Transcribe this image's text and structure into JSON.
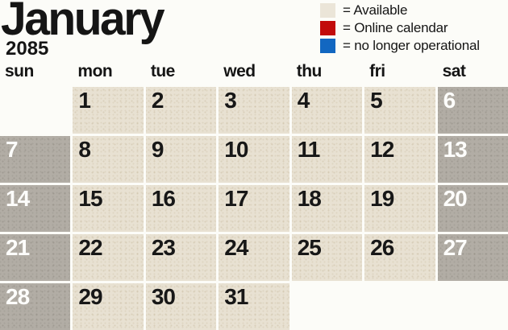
{
  "header": {
    "month": "January",
    "year": "2085"
  },
  "legend": {
    "items": [
      {
        "name": "available",
        "label": "= Available",
        "color": "#ebe5d8"
      },
      {
        "name": "online-calendar",
        "label": "= Online calendar",
        "color": "#c20b0b"
      },
      {
        "name": "no-longer-operational",
        "label": "= no longer operational",
        "color": "#1267c1"
      }
    ]
  },
  "weekdays": [
    "sun",
    "mon",
    "tue",
    "wed",
    "thu",
    "fri",
    "sat"
  ],
  "calendar": {
    "cells": [
      "",
      "1",
      "2",
      "3",
      "4",
      "5",
      "6",
      "7",
      "8",
      "9",
      "10",
      "11",
      "12",
      "13",
      "14",
      "15",
      "16",
      "17",
      "18",
      "19",
      "20",
      "21",
      "22",
      "23",
      "24",
      "25",
      "26",
      "27",
      "28",
      "29",
      "30",
      "31",
      "",
      "",
      ""
    ]
  },
  "colors": {
    "available_cell": "#e8e1d2",
    "weekend_cell": "#b2ada5",
    "weekday_number": "#171717",
    "weekend_number": "#fdfdfb",
    "text": "#151515",
    "page_background": "#fcfcf8"
  }
}
